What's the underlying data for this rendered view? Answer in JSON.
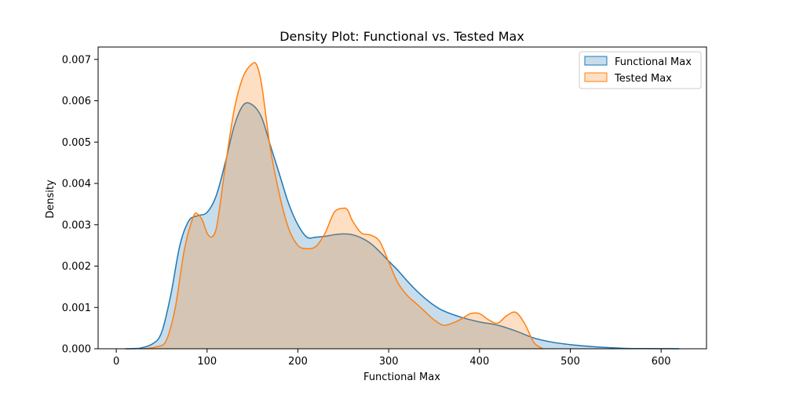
{
  "chart_data": {
    "type": "area",
    "title": "Density Plot: Functional vs. Tested Max",
    "xlabel": "Functional Max",
    "ylabel": "Density",
    "xlim": [
      -20,
      650
    ],
    "ylim": [
      0,
      0.0073
    ],
    "xticks": [
      0,
      100,
      200,
      300,
      400,
      500,
      600
    ],
    "yticks": [
      0.0,
      0.001,
      0.002,
      0.003,
      0.004,
      0.005,
      0.006,
      0.007
    ],
    "ytick_labels": [
      "0.000",
      "0.001",
      "0.002",
      "0.003",
      "0.004",
      "0.005",
      "0.006",
      "0.007"
    ],
    "grid": false,
    "legend_position": "top-right",
    "series": [
      {
        "name": "Functional Max",
        "color": "#1f77b4",
        "fill": "#c6dbef",
        "x": [
          10,
          25,
          40,
          50,
          60,
          70,
          80,
          90,
          100,
          110,
          120,
          130,
          140,
          150,
          160,
          170,
          180,
          190,
          200,
          210,
          220,
          230,
          240,
          250,
          260,
          270,
          280,
          290,
          300,
          310,
          320,
          330,
          340,
          350,
          360,
          380,
          400,
          420,
          440,
          460,
          480,
          500,
          520,
          540,
          560,
          580,
          600,
          620
        ],
        "y": [
          0.0,
          1e-05,
          0.00012,
          0.0004,
          0.0013,
          0.0025,
          0.0031,
          0.00322,
          0.0033,
          0.0037,
          0.0045,
          0.0054,
          0.0059,
          0.0059,
          0.0056,
          0.0049,
          0.0042,
          0.0035,
          0.003,
          0.0027,
          0.0027,
          0.00272,
          0.00276,
          0.00278,
          0.00276,
          0.00268,
          0.00255,
          0.00235,
          0.00212,
          0.0019,
          0.00165,
          0.00142,
          0.00122,
          0.00105,
          0.00092,
          0.00076,
          0.00065,
          0.00057,
          0.00043,
          0.00026,
          0.00016,
          0.0001,
          6e-05,
          3e-05,
          1e-05,
          5e-06,
          2e-06,
          0.0
        ]
      },
      {
        "name": "Tested Max",
        "color": "#ff7f0e",
        "fill": "#ffd7b3",
        "x": [
          30,
          45,
          55,
          65,
          75,
          85,
          90,
          95,
          100,
          105,
          110,
          115,
          120,
          130,
          140,
          150,
          155,
          160,
          165,
          170,
          180,
          190,
          200,
          210,
          220,
          230,
          240,
          250,
          255,
          260,
          270,
          280,
          290,
          300,
          310,
          320,
          330,
          340,
          350,
          360,
          370,
          380,
          390,
          400,
          410,
          420,
          430,
          440,
          450,
          460,
          470
        ],
        "y": [
          0.0,
          5e-05,
          0.0002,
          0.001,
          0.0024,
          0.0032,
          0.00325,
          0.0031,
          0.0028,
          0.0027,
          0.0029,
          0.0036,
          0.0044,
          0.0058,
          0.0066,
          0.0069,
          0.00685,
          0.0064,
          0.0056,
          0.0048,
          0.0037,
          0.0029,
          0.0025,
          0.00242,
          0.00248,
          0.0028,
          0.0033,
          0.0034,
          0.00335,
          0.0031,
          0.0028,
          0.00275,
          0.0026,
          0.0021,
          0.0016,
          0.0013,
          0.0011,
          0.0009,
          0.0007,
          0.00057,
          0.00062,
          0.00072,
          0.00085,
          0.00085,
          0.0007,
          0.00062,
          0.0008,
          0.00088,
          0.0006,
          0.00015,
          0.0
        ]
      }
    ]
  }
}
